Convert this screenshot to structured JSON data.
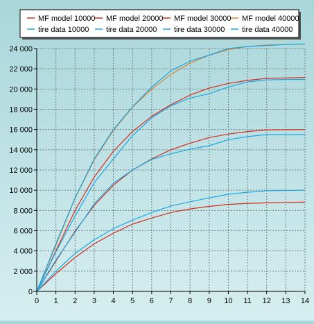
{
  "chart_data": {
    "type": "line",
    "title": "",
    "xlabel": "",
    "ylabel": "",
    "xlim": [
      0,
      14
    ],
    "ylim": [
      0,
      24000
    ],
    "xticks": [
      0,
      1,
      2,
      3,
      4,
      5,
      6,
      7,
      8,
      9,
      10,
      11,
      12,
      13,
      14
    ],
    "xtick_labels": [
      "0",
      "1",
      "2",
      "3",
      "4",
      "5",
      "6",
      "7",
      "8",
      "9",
      "10",
      "11",
      "12",
      "13",
      "14"
    ],
    "yticks": [
      0,
      2000,
      4000,
      6000,
      8000,
      10000,
      12000,
      14000,
      16000,
      18000,
      20000,
      22000,
      24000
    ],
    "ytick_labels": [
      "0",
      "2 000",
      "4 000",
      "6 000",
      "8 000",
      "10 000",
      "12 000",
      "14 000",
      "16 000",
      "18 000",
      "20 000",
      "22 000",
      "24 000"
    ],
    "grid": true,
    "legend_position": "top",
    "x": [
      0,
      1,
      2,
      3,
      4,
      5,
      6,
      7,
      8,
      9,
      10,
      11,
      12,
      13,
      14
    ],
    "series": [
      {
        "name": "MF model 10000",
        "color": "#d42a1c",
        "values": [
          0,
          1750,
          3350,
          4700,
          5750,
          6650,
          7250,
          7800,
          8150,
          8400,
          8600,
          8700,
          8750,
          8800,
          8820
        ]
      },
      {
        "name": "MF model 20000",
        "color": "#d42a1c",
        "values": [
          0,
          3000,
          5950,
          8500,
          10500,
          12000,
          13100,
          14000,
          14650,
          15200,
          15550,
          15800,
          15950,
          15980,
          16000
        ]
      },
      {
        "name": "MF model 30000",
        "color": "#d42a1c",
        "values": [
          0,
          4000,
          8000,
          11300,
          13850,
          15800,
          17300,
          18450,
          19400,
          20100,
          20550,
          20850,
          21050,
          21100,
          21150
        ]
      },
      {
        "name": "MF model 40000",
        "color": "#e0802a",
        "values": [
          0,
          4550,
          9200,
          13000,
          15900,
          18200,
          20000,
          21450,
          22550,
          23350,
          23900,
          24200,
          24350,
          24400,
          24450
        ]
      },
      {
        "name": "tire data 10000",
        "color": "#1aa7e0",
        "values": [
          0,
          2000,
          3750,
          5100,
          6200,
          7050,
          7800,
          8450,
          8850,
          9250,
          9600,
          9800,
          9950,
          9980,
          10000
        ]
      },
      {
        "name": "tire data 20000",
        "color": "#1aa7e0",
        "values": [
          0,
          3100,
          5850,
          8650,
          10700,
          12000,
          13050,
          13600,
          14050,
          14400,
          15000,
          15300,
          15500,
          15500,
          15500
        ]
      },
      {
        "name": "tire data 30000",
        "color": "#1aa7e0",
        "values": [
          0,
          3900,
          7450,
          10750,
          13100,
          15400,
          17150,
          18350,
          19100,
          19550,
          20200,
          20700,
          20900,
          20950,
          20950
        ]
      },
      {
        "name": "tire data 40000",
        "color": "#1aa7e0",
        "values": [
          0,
          4700,
          9250,
          13100,
          16000,
          18250,
          20200,
          21800,
          22750,
          23350,
          24000,
          24200,
          24300,
          24400,
          24450
        ]
      }
    ]
  }
}
